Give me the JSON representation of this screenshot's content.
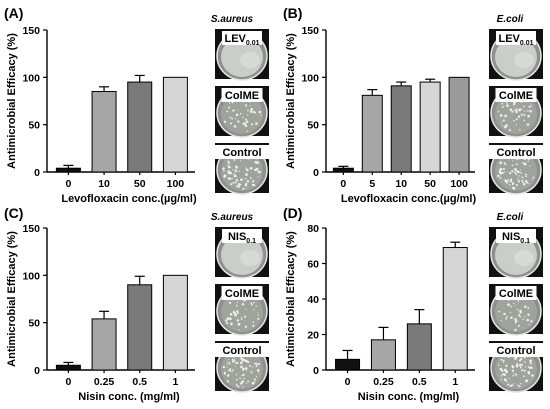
{
  "chart_data": [
    {
      "panel": "(A)",
      "type": "bar",
      "species": "S.aureus",
      "categories": [
        "0",
        "10",
        "50",
        "100"
      ],
      "values": [
        4,
        85,
        95,
        100
      ],
      "errors": [
        3,
        5,
        7,
        0
      ],
      "colors": [
        "#111111",
        "#a6a6a6",
        "#7a7a7a",
        "#d6d6d6"
      ],
      "xlabel": "Levofloxacin conc.(µg/ml)",
      "ylabel": "Antimicrobial Efficacy (%)",
      "ylim": [
        0,
        150
      ],
      "yticks": [
        0,
        50,
        100,
        150
      ],
      "dishes": [
        {
          "label": "LEV",
          "sub": "0.01",
          "style": "clear"
        },
        {
          "label": "ColME",
          "sub": "",
          "style": "colonies"
        },
        {
          "label": "Control",
          "sub": "",
          "style": "dense"
        }
      ]
    },
    {
      "panel": "(B)",
      "type": "bar",
      "species": "E.coli",
      "categories": [
        "0",
        "5",
        "10",
        "50",
        "100"
      ],
      "values": [
        4,
        81,
        91,
        95,
        100
      ],
      "errors": [
        2,
        6,
        4,
        3,
        0
      ],
      "colors": [
        "#111111",
        "#a6a6a6",
        "#7a7a7a",
        "#d6d6d6",
        "#9a9a9a"
      ],
      "xlabel": "Levofloxacin conc.(µg/ml)",
      "ylabel": "Antimicrobial Efficacy (%)",
      "ylim": [
        0,
        150
      ],
      "yticks": [
        0,
        50,
        100,
        150
      ],
      "dishes": [
        {
          "label": "LEV",
          "sub": "0.01",
          "style": "clear"
        },
        {
          "label": "ColME",
          "sub": "",
          "style": "colonies"
        },
        {
          "label": "Control",
          "sub": "",
          "style": "dense"
        }
      ]
    },
    {
      "panel": "(C)",
      "type": "bar",
      "species": "S.aureus",
      "categories": [
        "0",
        "0.25",
        "0.5",
        "1"
      ],
      "values": [
        5,
        54,
        90,
        100
      ],
      "errors": [
        3,
        8,
        9,
        0
      ],
      "colors": [
        "#111111",
        "#a6a6a6",
        "#7a7a7a",
        "#d6d6d6"
      ],
      "xlabel": "Nisin conc. (mg/ml)",
      "ylabel": "Antimicrobial Efficacy (%)",
      "ylim": [
        0,
        150
      ],
      "yticks": [
        0,
        50,
        100,
        150
      ],
      "dishes": [
        {
          "label": "NIS",
          "sub": "0.1",
          "style": "clear"
        },
        {
          "label": "ColME",
          "sub": "",
          "style": "colonies"
        },
        {
          "label": "Control",
          "sub": "",
          "style": "dense"
        }
      ]
    },
    {
      "panel": "(D)",
      "type": "bar",
      "species": "E.coli",
      "categories": [
        "0",
        "0.25",
        "0.5",
        "1"
      ],
      "values": [
        6,
        17,
        26,
        69
      ],
      "errors": [
        5,
        7,
        8,
        3
      ],
      "colors": [
        "#111111",
        "#a6a6a6",
        "#7a7a7a",
        "#d6d6d6"
      ],
      "xlabel": "Nisin conc. (mg/ml)",
      "ylabel": "Antimicrobial Efficacy (%)",
      "ylim": [
        0,
        80
      ],
      "yticks": [
        0,
        20,
        40,
        60,
        80
      ],
      "dishes": [
        {
          "label": "NIS",
          "sub": "0.1",
          "style": "clear"
        },
        {
          "label": "ColME",
          "sub": "",
          "style": "colonies"
        },
        {
          "label": "Control",
          "sub": "",
          "style": "dense"
        }
      ]
    }
  ]
}
